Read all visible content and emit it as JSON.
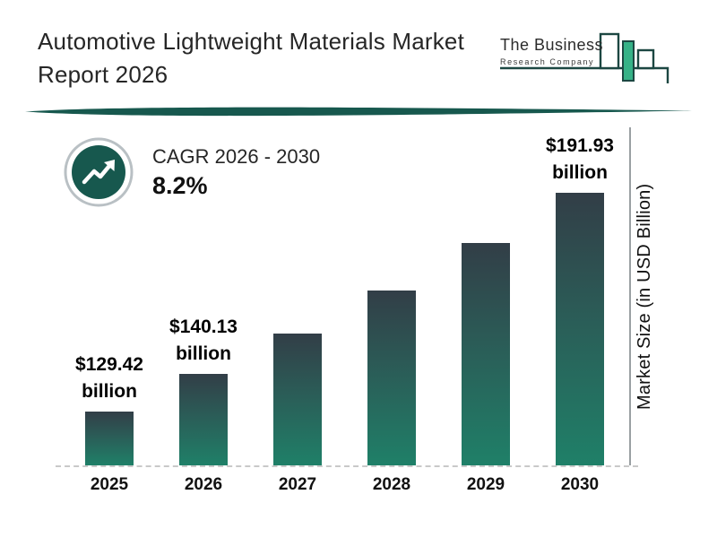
{
  "report": {
    "title_line1": "Automotive Lightweight Materials Market",
    "title_line2": "Report 2026"
  },
  "logo": {
    "name_line1": "The Business",
    "name_line2": "Research Company"
  },
  "cagr": {
    "label": "CAGR 2026 - 2030",
    "value": "8.2%"
  },
  "chart_data": {
    "type": "bar",
    "title": "Automotive Lightweight Materials Market Report 2026",
    "ylabel": "Market Size (in USD Billion)",
    "xlabel": "",
    "unit": "USD billion",
    "categories": [
      "2025",
      "2026",
      "2027",
      "2028",
      "2029",
      "2030"
    ],
    "values": [
      129.42,
      140.13,
      151.62,
      164.06,
      177.51,
      191.93
    ],
    "value_labels": [
      "$129.42\nbillion",
      "$140.13\nbillion",
      "",
      "",
      "",
      "$191.93\nbillion"
    ],
    "values_note": "2027-2029 values estimated from the stated 8.2% CAGR; only 2025, 2026 and 2030 are labeled in the figure",
    "legend": "none",
    "gridlines": "off",
    "baseline_style": "dashed",
    "axis_position": "right"
  },
  "colors": {
    "bar_gradient_top": "#323e47",
    "bar_gradient_bottom": "#1f8068",
    "accent_teal": "#17584e",
    "logo_green": "#36b287",
    "baseline_gray": "#c9c9c9"
  }
}
